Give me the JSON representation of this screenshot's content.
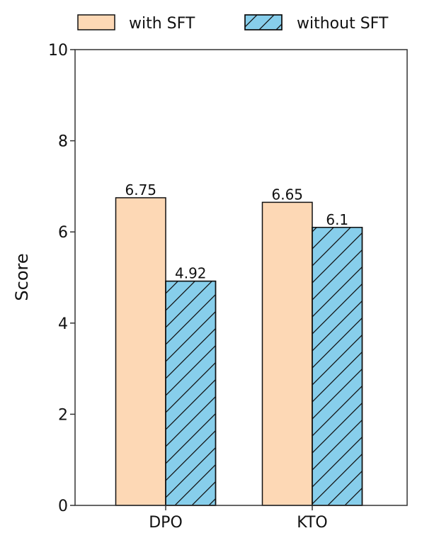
{
  "chart_data": {
    "type": "bar",
    "title": "",
    "xlabel": "",
    "ylabel": "Score",
    "ylim": [
      0,
      10
    ],
    "yticks": [
      0,
      2,
      4,
      6,
      8,
      10
    ],
    "grid": false,
    "legend_position": "top",
    "categories": [
      "DPO",
      "KTO"
    ],
    "series": [
      {
        "name": "with SFT",
        "values": [
          6.75,
          6.65
        ],
        "color": "#fdd8b5",
        "hatch": "none"
      },
      {
        "name": "without SFT",
        "values": [
          4.92,
          6.1
        ],
        "color": "#87ceeb",
        "hatch": "diagonal"
      }
    ],
    "data_labels": [
      [
        "6.75",
        "6.65"
      ],
      [
        "4.92",
        "6.1"
      ]
    ]
  }
}
